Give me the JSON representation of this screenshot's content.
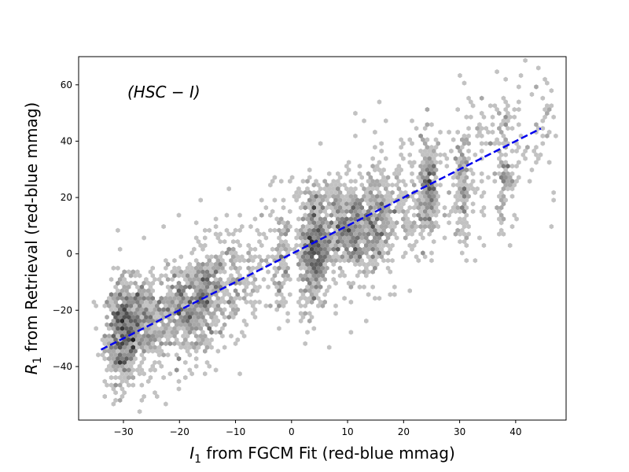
{
  "chart_data": {
    "type": "scatter",
    "title": "",
    "xlabel_main": "I",
    "xlabel_sub": "1",
    "xlabel_rest": " from FGCM Fit (red-blue mmag)",
    "ylabel_main": "R",
    "ylabel_sub": "1",
    "ylabel_rest": " from Retrieval (red-blue mmag)",
    "annotation": "(HSC − I)",
    "xlim": [
      -38,
      49
    ],
    "ylim": [
      -59,
      70
    ],
    "xticks": [
      -30,
      -20,
      -10,
      0,
      10,
      20,
      30,
      40
    ],
    "xtick_labels": [
      "−30",
      "−20",
      "−10",
      "0",
      "10",
      "20",
      "30",
      "40"
    ],
    "yticks": [
      -40,
      -20,
      0,
      20,
      40,
      60
    ],
    "ytick_labels": [
      "−40",
      "−20",
      "0",
      "20",
      "40",
      "60"
    ],
    "grid": false,
    "density_clusters": [
      {
        "x": -30,
        "y": -28,
        "sx": 1.6,
        "sy": 9,
        "n": 520
      },
      {
        "x": -26,
        "y": -24,
        "sx": 2.5,
        "sy": 8,
        "n": 260
      },
      {
        "x": -19,
        "y": -20,
        "sx": 2.2,
        "sy": 8,
        "n": 300
      },
      {
        "x": -15,
        "y": -14,
        "sx": 1.6,
        "sy": 8,
        "n": 220
      },
      {
        "x": -10,
        "y": -10,
        "sx": 2.5,
        "sy": 9,
        "n": 120
      },
      {
        "x": -2,
        "y": -3,
        "sx": 0.8,
        "sy": 10,
        "n": 80
      },
      {
        "x": 4,
        "y": 2,
        "sx": 1.3,
        "sy": 11,
        "n": 460
      },
      {
        "x": 8,
        "y": 10,
        "sx": 1.6,
        "sy": 8,
        "n": 200
      },
      {
        "x": 11,
        "y": 9,
        "sx": 1.3,
        "sy": 9,
        "n": 220
      },
      {
        "x": 15,
        "y": 12,
        "sx": 1.2,
        "sy": 9,
        "n": 230
      },
      {
        "x": 20,
        "y": 15,
        "sx": 2.0,
        "sy": 9,
        "n": 100
      },
      {
        "x": 24.5,
        "y": 22,
        "sx": 0.8,
        "sy": 9,
        "n": 200
      },
      {
        "x": 30.5,
        "y": 25,
        "sx": 0.8,
        "sy": 12,
        "n": 110
      },
      {
        "x": 38,
        "y": 30,
        "sx": 0.6,
        "sy": 10,
        "n": 90
      }
    ],
    "fit_line": {
      "name": "",
      "color": "#0000ee",
      "style": "dashed",
      "x": [
        -34,
        44.5
      ],
      "y": [
        -34,
        44.5
      ]
    }
  }
}
